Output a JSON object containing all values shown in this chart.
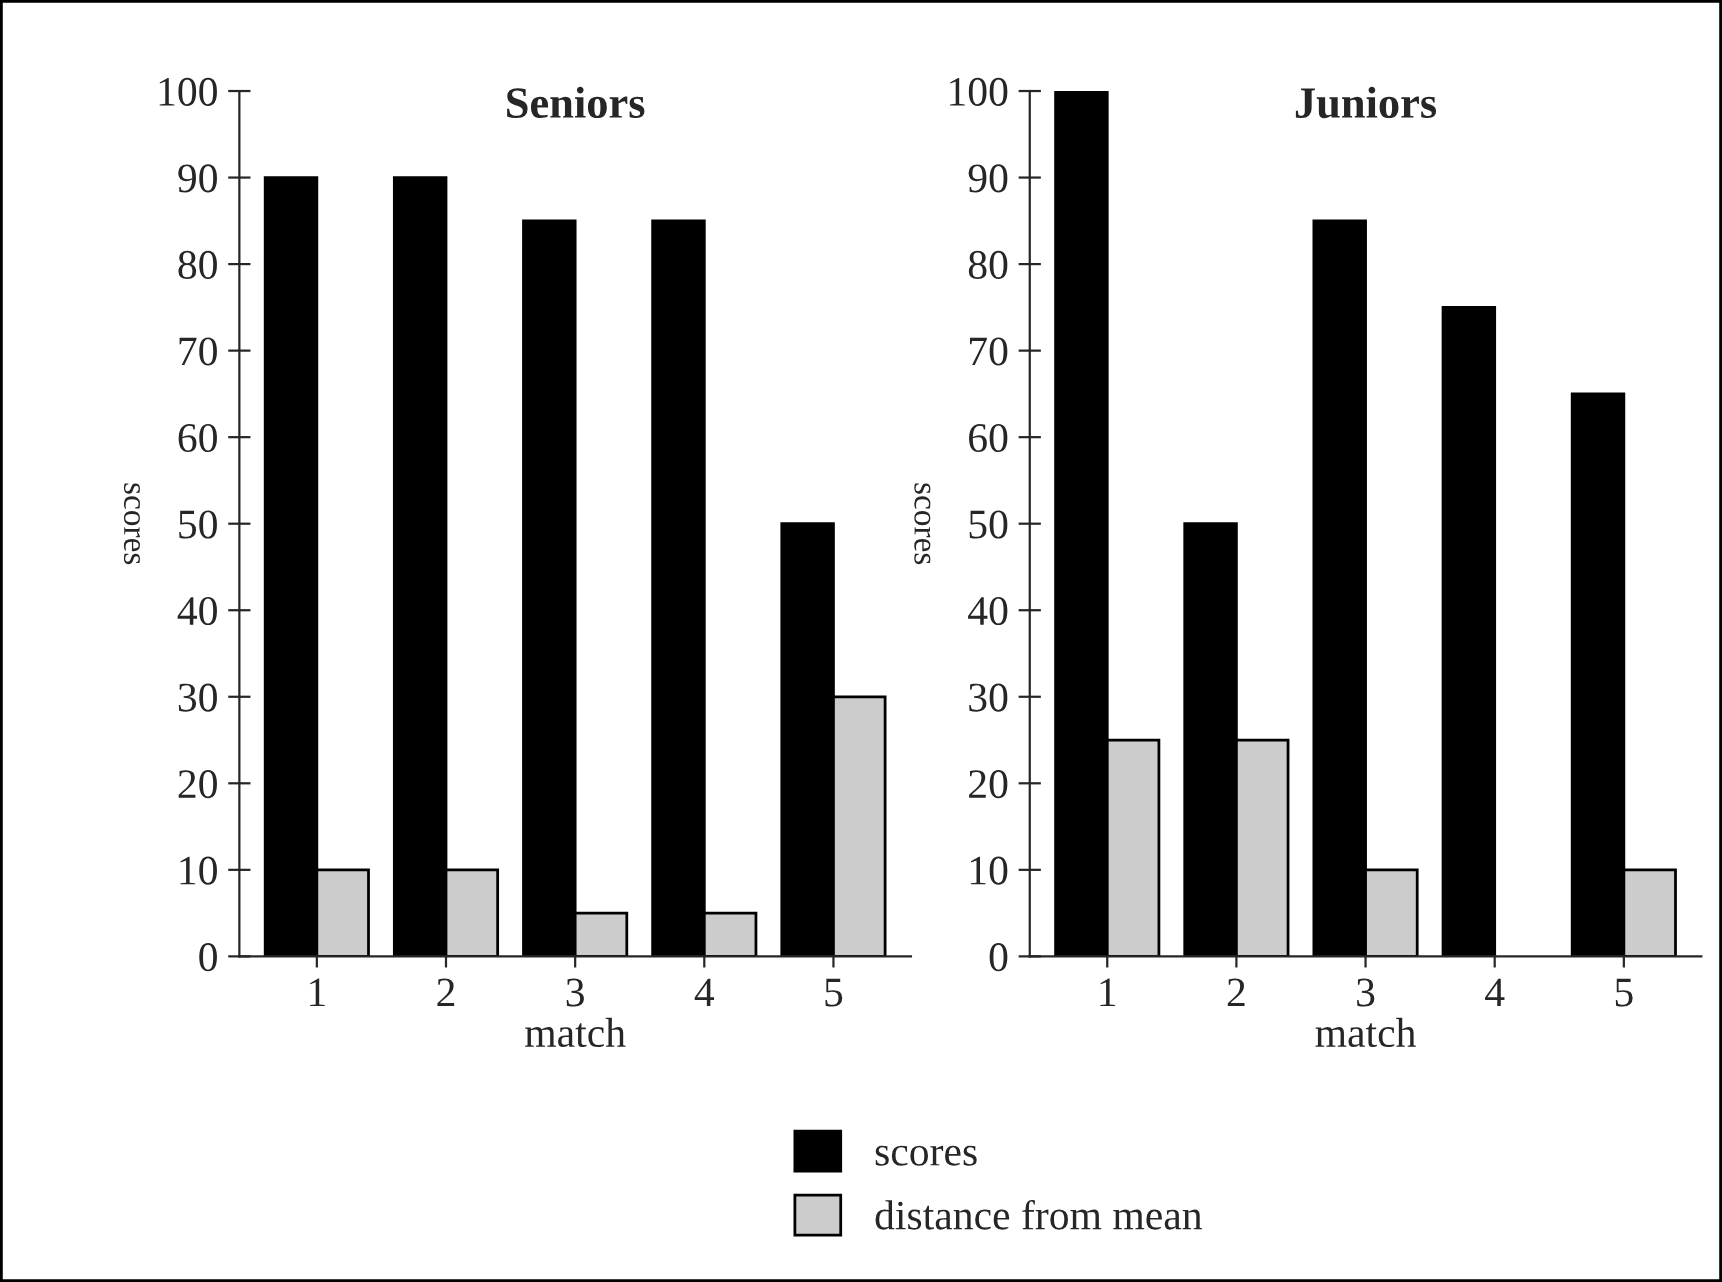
{
  "chart_data": [
    {
      "type": "bar",
      "title": "Seniors",
      "xlabel": "match",
      "ylabel": "scores",
      "categories": [
        "1",
        "2",
        "3",
        "4",
        "5"
      ],
      "series": [
        {
          "name": "scores",
          "color": "#000000",
          "values": [
            90,
            90,
            85,
            85,
            50
          ]
        },
        {
          "name": "distance from mean",
          "color": "#cccccc",
          "values": [
            10,
            10,
            5,
            5,
            30
          ]
        }
      ],
      "ylim": [
        0,
        100
      ],
      "yticks": [
        0,
        10,
        20,
        30,
        40,
        50,
        60,
        70,
        80,
        90,
        100
      ],
      "grid": false,
      "legend": "bottom"
    },
    {
      "type": "bar",
      "title": "Juniors",
      "xlabel": "match",
      "ylabel": "scores",
      "categories": [
        "1",
        "2",
        "3",
        "4",
        "5"
      ],
      "series": [
        {
          "color": "#000000",
          "values": [
            100,
            50,
            85,
            75,
            65
          ]
        },
        {
          "color": "#cccccc",
          "values": [
            25,
            25,
            10,
            0,
            10
          ]
        }
      ],
      "ylim": [
        0,
        100
      ],
      "yticks": [
        0,
        10,
        20,
        30,
        40,
        50,
        60,
        70,
        80,
        90,
        100
      ],
      "grid": false
    }
  ]
}
